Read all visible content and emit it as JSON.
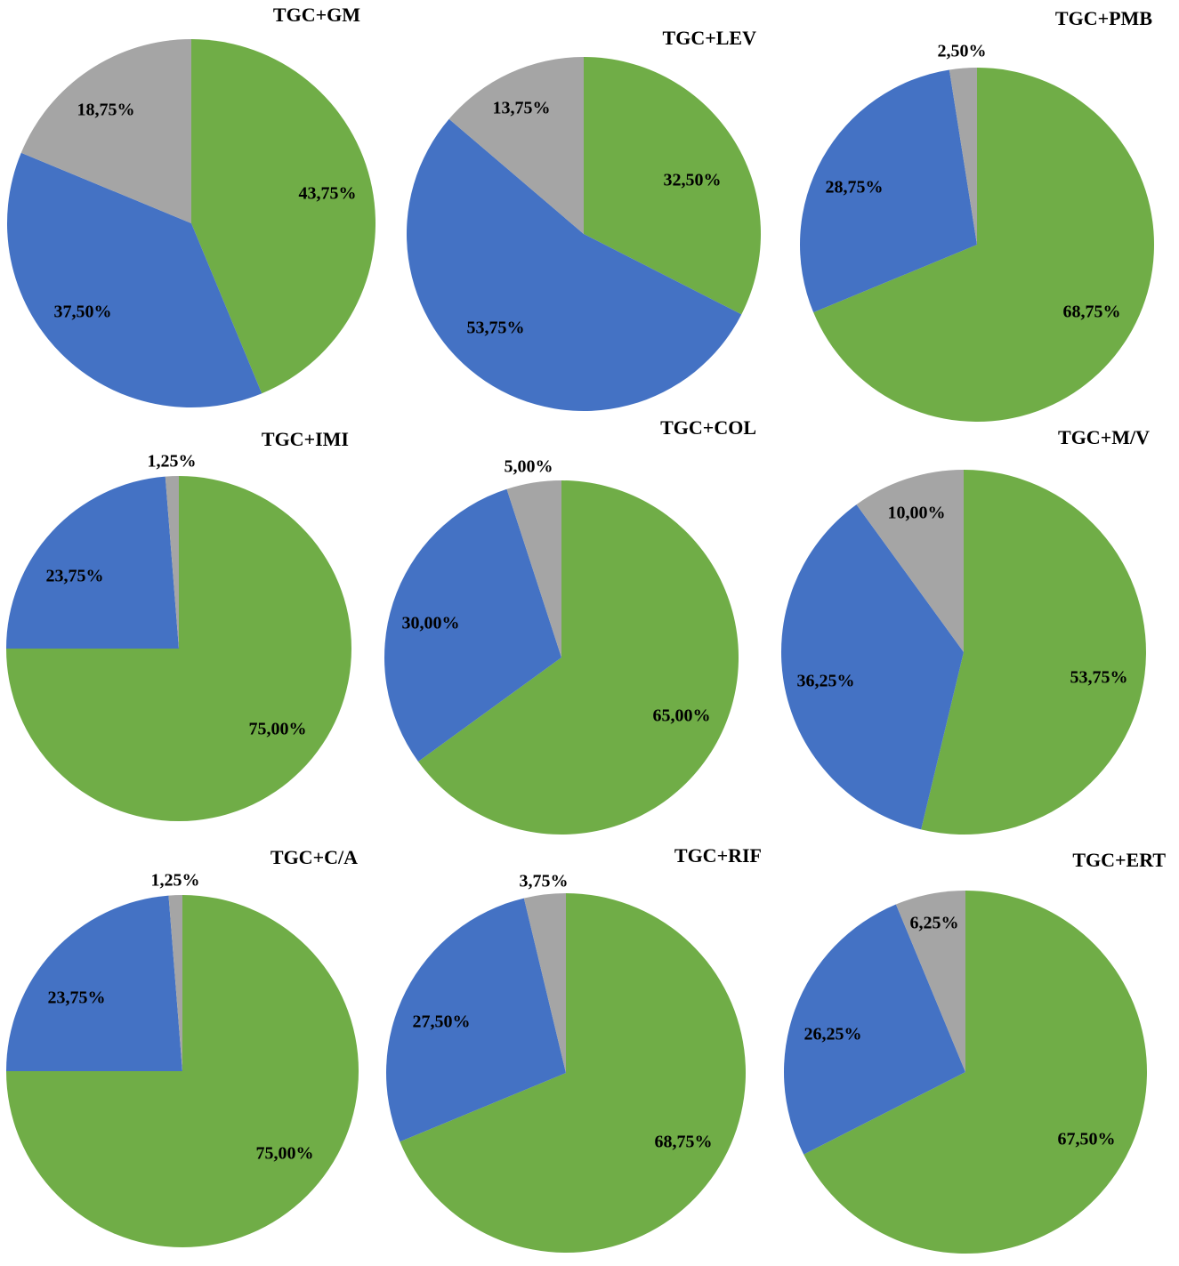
{
  "colors": {
    "green": "#70AD47",
    "blue": "#4472C4",
    "gray": "#A5A5A5"
  },
  "chart_data": [
    {
      "type": "pie",
      "title": "TGC+GM",
      "slices": [
        {
          "color": "green",
          "value": 43.75,
          "label": "43,75%"
        },
        {
          "color": "blue",
          "value": 37.5,
          "label": "37,50%"
        },
        {
          "color": "gray",
          "value": 18.75,
          "label": "18,75%"
        }
      ]
    },
    {
      "type": "pie",
      "title": "TGC+LEV",
      "slices": [
        {
          "color": "green",
          "value": 32.5,
          "label": "32,50%"
        },
        {
          "color": "blue",
          "value": 53.75,
          "label": "53,75%"
        },
        {
          "color": "gray",
          "value": 13.75,
          "label": "13,75%"
        }
      ]
    },
    {
      "type": "pie",
      "title": "TGC+PMB",
      "slices": [
        {
          "color": "green",
          "value": 68.75,
          "label": "68,75%"
        },
        {
          "color": "blue",
          "value": 28.75,
          "label": "28,75%"
        },
        {
          "color": "gray",
          "value": 2.5,
          "label": "2,50%"
        }
      ]
    },
    {
      "type": "pie",
      "title": "TGC+IMI",
      "slices": [
        {
          "color": "green",
          "value": 75.0,
          "label": "75,00%"
        },
        {
          "color": "blue",
          "value": 23.75,
          "label": "23,75%"
        },
        {
          "color": "gray",
          "value": 1.25,
          "label": "1,25%"
        }
      ]
    },
    {
      "type": "pie",
      "title": "TGC+COL",
      "slices": [
        {
          "color": "green",
          "value": 65.0,
          "label": "65,00%"
        },
        {
          "color": "blue",
          "value": 30.0,
          "label": "30,00%"
        },
        {
          "color": "gray",
          "value": 5.0,
          "label": "5,00%"
        }
      ]
    },
    {
      "type": "pie",
      "title": "TGC+M/V",
      "slices": [
        {
          "color": "green",
          "value": 53.75,
          "label": "53,75%"
        },
        {
          "color": "blue",
          "value": 36.25,
          "label": "36,25%"
        },
        {
          "color": "gray",
          "value": 10.0,
          "label": "10,00%"
        }
      ]
    },
    {
      "type": "pie",
      "title": "TGC+C/A",
      "slices": [
        {
          "color": "green",
          "value": 75.0,
          "label": "75,00%"
        },
        {
          "color": "blue",
          "value": 23.75,
          "label": "23,75%"
        },
        {
          "color": "gray",
          "value": 1.25,
          "label": "1,25%"
        }
      ]
    },
    {
      "type": "pie",
      "title": "TGC+RIF",
      "slices": [
        {
          "color": "green",
          "value": 68.75,
          "label": "68,75%"
        },
        {
          "color": "blue",
          "value": 27.5,
          "label": "27,50%"
        },
        {
          "color": "gray",
          "value": 3.75,
          "label": "3,75%"
        }
      ]
    },
    {
      "type": "pie",
      "title": "TGC+ERT",
      "slices": [
        {
          "color": "green",
          "value": 67.5,
          "label": "67,50%"
        },
        {
          "color": "blue",
          "value": 26.25,
          "label": "26,25%"
        },
        {
          "color": "gray",
          "value": 6.25,
          "label": "6,25%"
        }
      ]
    }
  ]
}
